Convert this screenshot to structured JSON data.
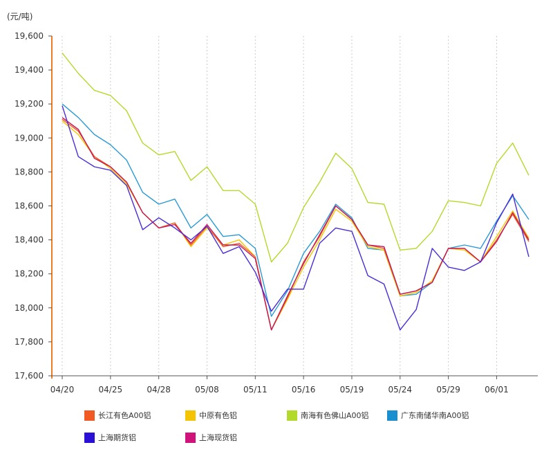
{
  "chart_data": {
    "type": "line",
    "unit_label": "(元/吨)",
    "ylim": [
      17600,
      19600
    ],
    "y_ticks": [
      "17,600",
      "17,800",
      "18,000",
      "18,200",
      "18,400",
      "18,600",
      "18,800",
      "19,000",
      "19,200",
      "19,400",
      "19,600"
    ],
    "y_tick_values": [
      17600,
      17800,
      18000,
      18200,
      18400,
      18600,
      18800,
      19000,
      19200,
      19400,
      19600
    ],
    "x_tick_labels": [
      "04/20",
      "04/25",
      "04/28",
      "05/08",
      "05/11",
      "05/16",
      "05/19",
      "05/24",
      "05/29",
      "06/01"
    ],
    "x_tick_indices": [
      0,
      3,
      6,
      9,
      12,
      15,
      18,
      21,
      24,
      27
    ],
    "n_points": 30,
    "series": [
      {
        "name": "南海有色佛山A00铝",
        "color": "#b3d92b",
        "values": [
          19500,
          19380,
          19280,
          19250,
          19160,
          18970,
          18900,
          18920,
          18750,
          18830,
          18690,
          18690,
          18610,
          18270,
          18380,
          18590,
          18740,
          18910,
          18820,
          18620,
          18610,
          18340,
          18350,
          18450,
          18630,
          18620,
          18600,
          18850,
          18970,
          18780
        ]
      },
      {
        "name": "广东南储华南A00铝",
        "color": "#2a9ad6",
        "values": [
          19200,
          19120,
          19020,
          18960,
          18870,
          18680,
          18610,
          18640,
          18470,
          18550,
          18420,
          18430,
          18350,
          17950,
          18100,
          18320,
          18450,
          18610,
          18530,
          18350,
          18340,
          18070,
          18080,
          18150,
          18350,
          18370,
          18350,
          18510,
          18660,
          18520
        ]
      },
      {
        "name": "中原有色铝",
        "color": "#f5c400",
        "values": [
          19100,
          19020,
          18890,
          18820,
          18730,
          18560,
          18470,
          18500,
          18360,
          18470,
          18370,
          18400,
          18300,
          17870,
          18050,
          18240,
          18400,
          18580,
          18510,
          18360,
          18340,
          18070,
          18090,
          18160,
          18350,
          18340,
          18270,
          18420,
          18570,
          18410
        ]
      },
      {
        "name": "长江有色A00铝",
        "color": "#f15a22",
        "values": [
          19110,
          19040,
          18890,
          18830,
          18740,
          18560,
          18470,
          18500,
          18370,
          18480,
          18360,
          18380,
          18300,
          17870,
          18060,
          18270,
          18420,
          18600,
          18520,
          18370,
          18350,
          18080,
          18100,
          18150,
          18350,
          18350,
          18270,
          18400,
          18550,
          18390
        ]
      },
      {
        "name": "上海现货铝",
        "color": "#c2185b",
        "values": [
          19120,
          19050,
          18880,
          18830,
          18740,
          18560,
          18470,
          18490,
          18380,
          18490,
          18370,
          18370,
          18290,
          17870,
          18070,
          18260,
          18430,
          18600,
          18520,
          18370,
          18360,
          18080,
          18100,
          18150,
          18350,
          18350,
          18270,
          18390,
          18560,
          18400
        ]
      },
      {
        "name": "上海期货铝",
        "color": "#4a2bd6",
        "values": [
          19190,
          18890,
          18830,
          18810,
          18720,
          18460,
          18530,
          18470,
          18400,
          18480,
          18320,
          18360,
          18210,
          17980,
          18110,
          18110,
          18380,
          18470,
          18450,
          18190,
          18140,
          17870,
          17990,
          18350,
          18240,
          18220,
          18270,
          18500,
          18670,
          18300
        ]
      }
    ],
    "legend": [
      {
        "name": "长江有色A00铝",
        "color": "#f15a22"
      },
      {
        "name": "中原有色铝",
        "color": "#f5c400"
      },
      {
        "name": "南海有色佛山A00铝",
        "color": "#b3d92b"
      },
      {
        "name": "广东南储华南A00铝",
        "color": "#1a8fd0"
      },
      {
        "name": "上海期货铝",
        "color": "#2a0fd6"
      },
      {
        "name": "上海现货铝",
        "color": "#d0137a"
      }
    ],
    "axis_color": "#f27a21",
    "grid": "vertical-dotted"
  }
}
